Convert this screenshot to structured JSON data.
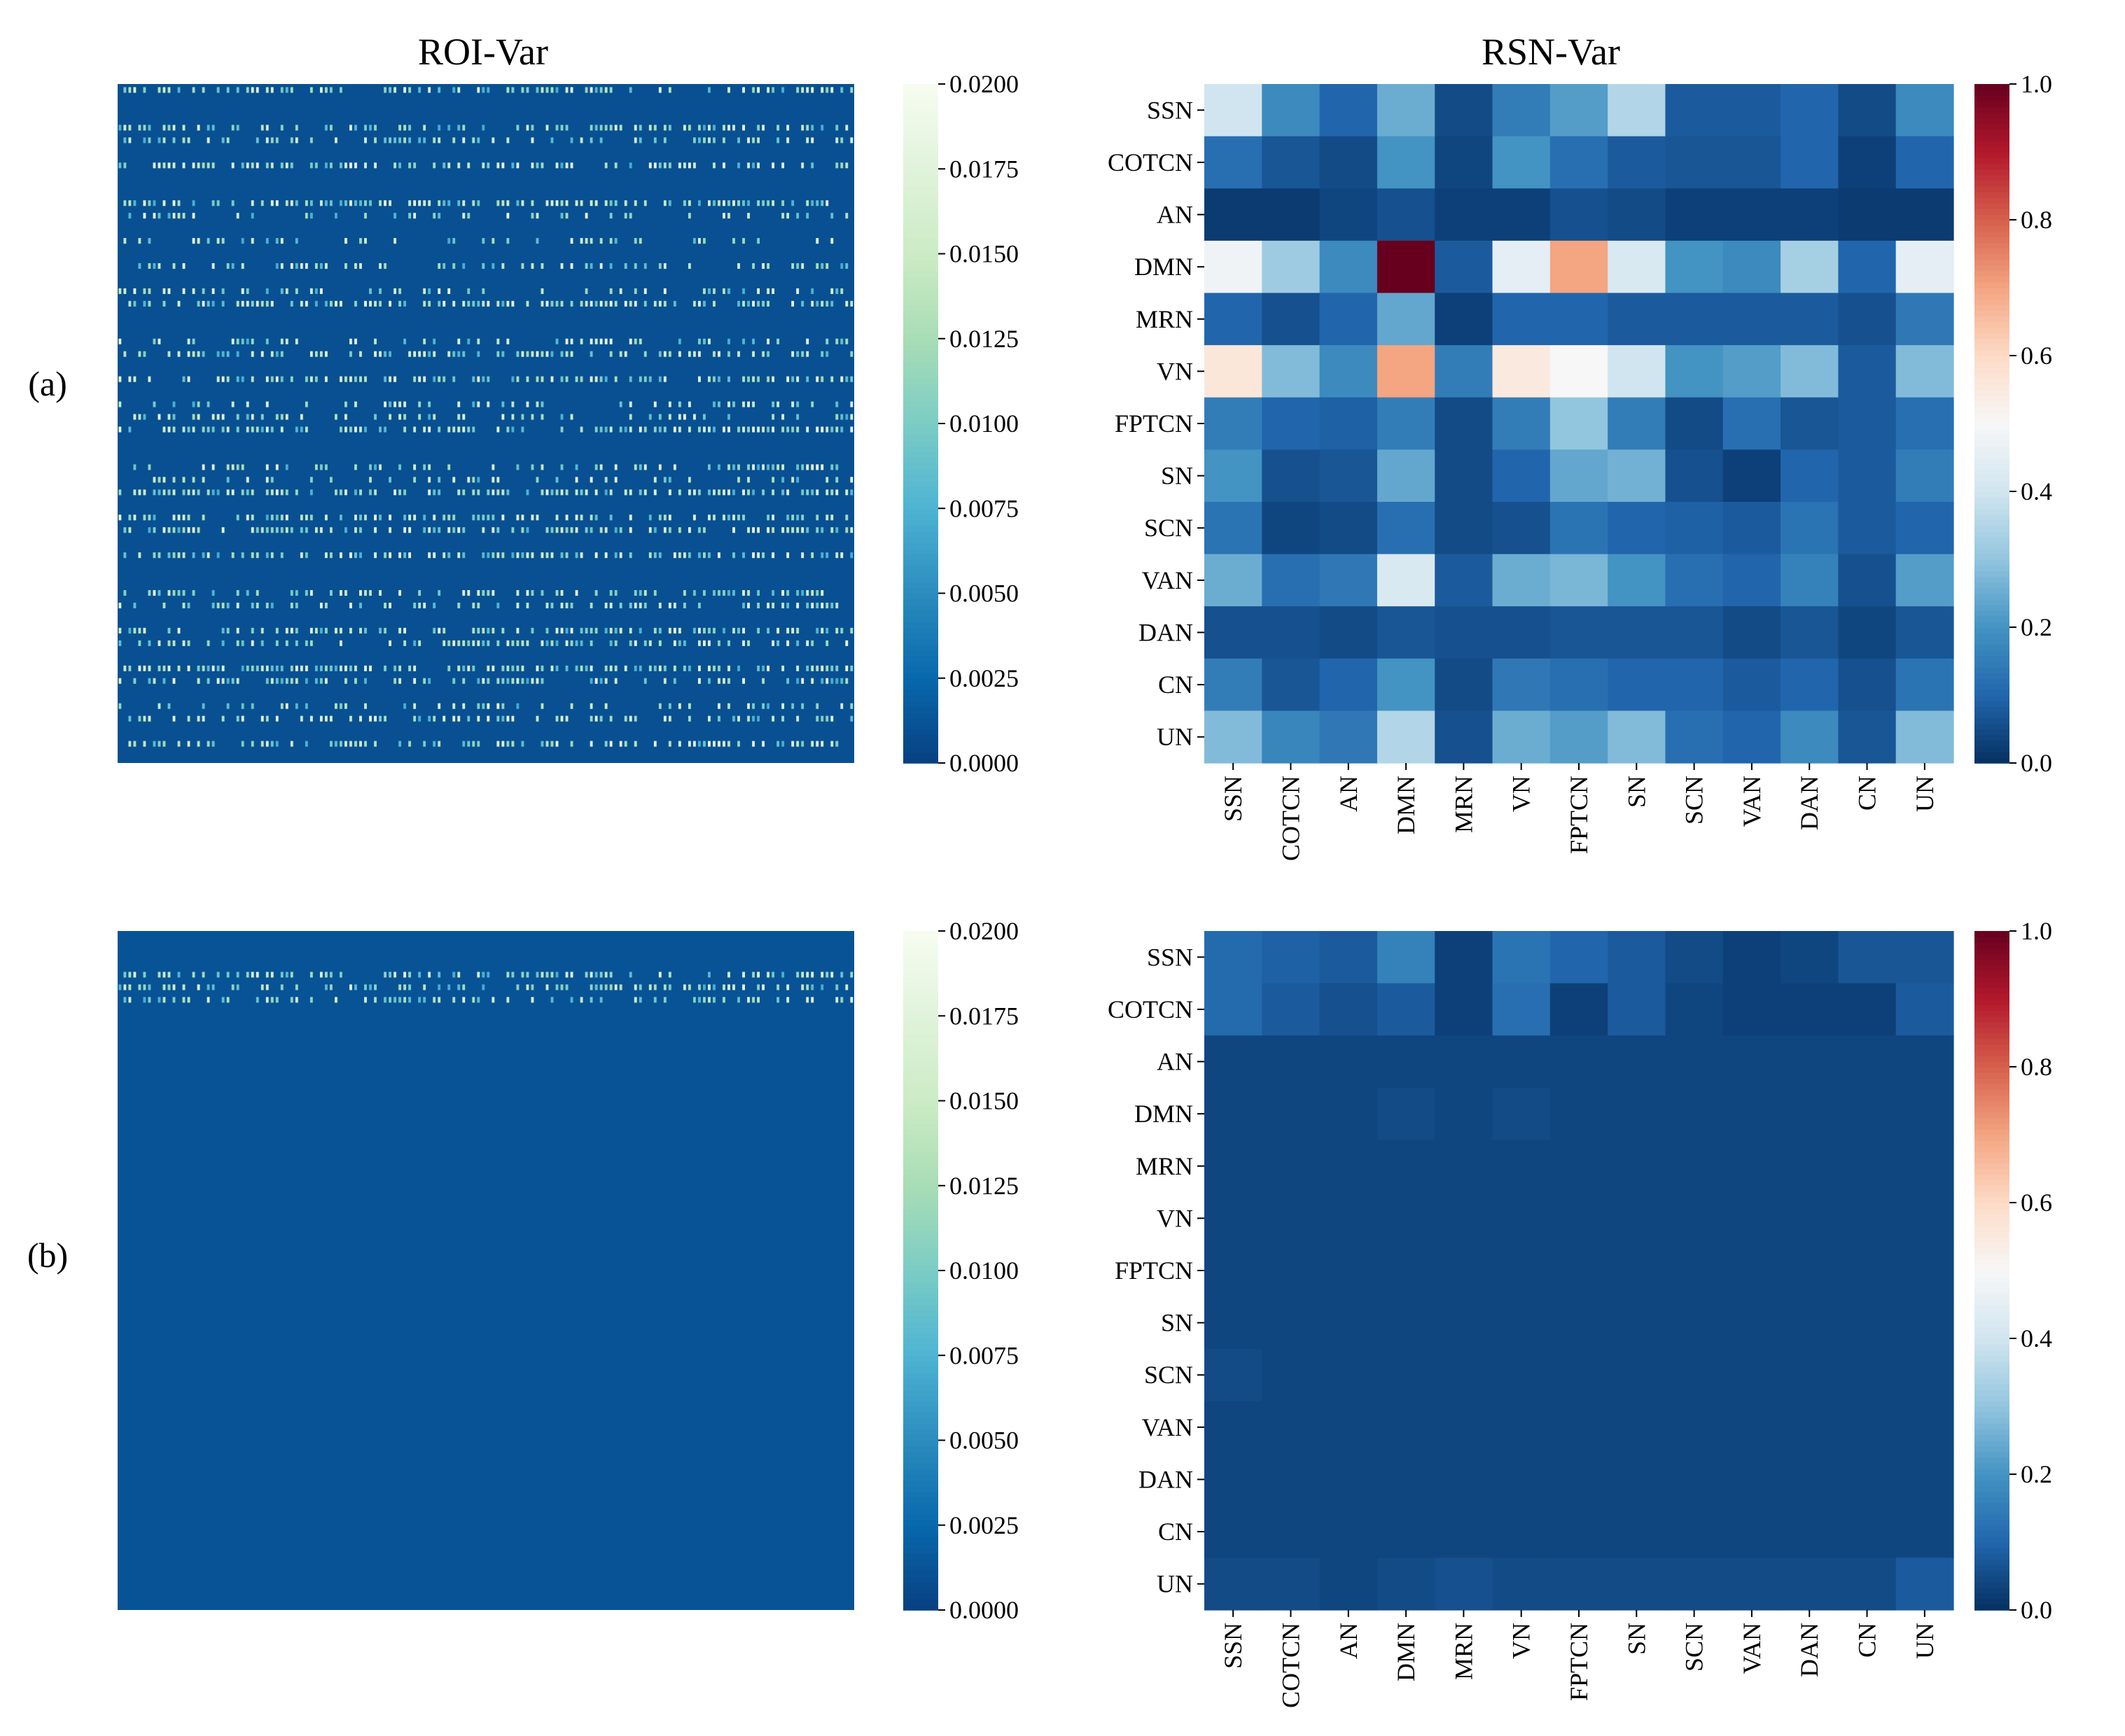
{
  "figure": {
    "titles": [
      "ROI-Var",
      "RSN-Var"
    ],
    "panel_labels": [
      "(a)",
      "(b)"
    ]
  },
  "colors": {
    "roi_cmap": [
      "#084081",
      "#0868ac",
      "#2b8cbe",
      "#4eb3d3",
      "#7bccc4",
      "#a8ddb5",
      "#ccebc5",
      "#e0f3db",
      "#f7fcf0"
    ],
    "rsn_cmap": [
      "#053061",
      "#2166ac",
      "#4393c3",
      "#92c5de",
      "#d1e5f0",
      "#f7f7f7",
      "#fddbc7",
      "#f4a582",
      "#d6604d",
      "#b2182b",
      "#67001f"
    ]
  },
  "chart_data": [
    {
      "type": "heatmap",
      "panel": "(a)",
      "title": "ROI-Var",
      "cmap": "GnBu_r",
      "vmin": 0.0,
      "vmax": 0.02,
      "grid": false,
      "xlabel": "",
      "ylabel": "",
      "colorbar_ticks": [
        "0.0000",
        "0.0025",
        "0.0050",
        "0.0075",
        "0.0100",
        "0.0125",
        "0.0150",
        "0.0175",
        "0.0200"
      ],
      "background_value": 0.001,
      "bright_rows": [
        0,
        3,
        4,
        6,
        9,
        10,
        12,
        14,
        16,
        17,
        20,
        21,
        23,
        25,
        26,
        27,
        30,
        31,
        32,
        34,
        35,
        37,
        40,
        41,
        43,
        44,
        46,
        47,
        49,
        50,
        52
      ],
      "total_rows": 54,
      "note": "Full ROI-level matrix not labeled; rows with bright cells approximated"
    },
    {
      "type": "heatmap",
      "panel": "(a)",
      "title": "RSN-Var",
      "cmap": "RdBu_r",
      "vmin": 0.0,
      "vmax": 1.0,
      "colorbar_ticks": [
        "0.0",
        "0.2",
        "0.4",
        "0.6",
        "0.8",
        "1.0"
      ],
      "x_labels": [
        "SSN",
        "COTCN",
        "AN",
        "DMN",
        "MRN",
        "VN",
        "FPTCN",
        "SN",
        "SCN",
        "VAN",
        "DAN",
        "CN",
        "UN"
      ],
      "y_labels": [
        "SSN",
        "COTCN",
        "AN",
        "DMN",
        "MRN",
        "VN",
        "FPTCN",
        "SN",
        "SCN",
        "VAN",
        "DAN",
        "CN",
        "UN"
      ],
      "values": [
        [
          0.4,
          0.18,
          0.1,
          0.25,
          0.05,
          0.15,
          0.22,
          0.35,
          0.08,
          0.08,
          0.1,
          0.05,
          0.18
        ],
        [
          0.12,
          0.07,
          0.05,
          0.2,
          0.04,
          0.2,
          0.12,
          0.08,
          0.07,
          0.07,
          0.1,
          0.03,
          0.1
        ],
        [
          0.02,
          0.02,
          0.04,
          0.06,
          0.03,
          0.03,
          0.06,
          0.05,
          0.03,
          0.03,
          0.03,
          0.02,
          0.02
        ],
        [
          0.48,
          0.32,
          0.18,
          1.0,
          0.08,
          0.45,
          0.7,
          0.42,
          0.2,
          0.18,
          0.33,
          0.1,
          0.45
        ],
        [
          0.1,
          0.06,
          0.1,
          0.24,
          0.03,
          0.1,
          0.1,
          0.08,
          0.08,
          0.08,
          0.08,
          0.06,
          0.14
        ],
        [
          0.56,
          0.28,
          0.18,
          0.7,
          0.15,
          0.55,
          0.5,
          0.4,
          0.2,
          0.22,
          0.28,
          0.08,
          0.28
        ],
        [
          0.15,
          0.1,
          0.09,
          0.15,
          0.05,
          0.15,
          0.3,
          0.15,
          0.05,
          0.12,
          0.07,
          0.08,
          0.12
        ],
        [
          0.2,
          0.06,
          0.07,
          0.24,
          0.05,
          0.1,
          0.24,
          0.26,
          0.06,
          0.03,
          0.1,
          0.08,
          0.15
        ],
        [
          0.13,
          0.04,
          0.05,
          0.12,
          0.05,
          0.06,
          0.13,
          0.1,
          0.09,
          0.08,
          0.13,
          0.08,
          0.1
        ],
        [
          0.25,
          0.12,
          0.14,
          0.42,
          0.08,
          0.25,
          0.27,
          0.2,
          0.12,
          0.1,
          0.16,
          0.06,
          0.22
        ],
        [
          0.06,
          0.06,
          0.05,
          0.07,
          0.06,
          0.06,
          0.07,
          0.07,
          0.07,
          0.05,
          0.07,
          0.04,
          0.07
        ],
        [
          0.15,
          0.07,
          0.1,
          0.2,
          0.05,
          0.14,
          0.12,
          0.1,
          0.1,
          0.08,
          0.1,
          0.06,
          0.13
        ],
        [
          0.28,
          0.17,
          0.14,
          0.35,
          0.06,
          0.25,
          0.22,
          0.28,
          0.12,
          0.1,
          0.18,
          0.07,
          0.28
        ]
      ]
    },
    {
      "type": "heatmap",
      "panel": "(b)",
      "title": "ROI-Var",
      "cmap": "GnBu_r",
      "vmin": 0.0,
      "vmax": 0.02,
      "grid": false,
      "colorbar_ticks": [
        "0.0000",
        "0.0025",
        "0.0050",
        "0.0075",
        "0.0100",
        "0.0125",
        "0.0150",
        "0.0175",
        "0.0200"
      ],
      "background_value": 0.0012,
      "bright_rows": [
        3,
        4,
        5
      ],
      "total_rows": 54,
      "note": "Mostly uniform; faint bright cells only near top rows"
    },
    {
      "type": "heatmap",
      "panel": "(b)",
      "title": "RSN-Var",
      "cmap": "RdBu_r",
      "vmin": 0.0,
      "vmax": 1.0,
      "colorbar_ticks": [
        "0.0",
        "0.2",
        "0.4",
        "0.6",
        "0.8",
        "1.0"
      ],
      "x_labels": [
        "SSN",
        "COTCN",
        "AN",
        "DMN",
        "MRN",
        "VN",
        "FPTCN",
        "SN",
        "SCN",
        "VAN",
        "DAN",
        "CN",
        "UN"
      ],
      "y_labels": [
        "SSN",
        "COTCN",
        "AN",
        "DMN",
        "MRN",
        "VN",
        "FPTCN",
        "SN",
        "SCN",
        "VAN",
        "DAN",
        "CN",
        "UN"
      ],
      "values": [
        [
          0.11,
          0.09,
          0.08,
          0.16,
          0.03,
          0.13,
          0.1,
          0.08,
          0.05,
          0.03,
          0.04,
          0.07,
          0.07
        ],
        [
          0.11,
          0.08,
          0.06,
          0.08,
          0.03,
          0.12,
          0.03,
          0.08,
          0.04,
          0.03,
          0.03,
          0.03,
          0.08
        ],
        [
          0.04,
          0.04,
          0.04,
          0.04,
          0.04,
          0.04,
          0.04,
          0.04,
          0.04,
          0.04,
          0.04,
          0.04,
          0.04
        ],
        [
          0.04,
          0.04,
          0.04,
          0.05,
          0.04,
          0.05,
          0.04,
          0.04,
          0.04,
          0.04,
          0.04,
          0.04,
          0.04
        ],
        [
          0.04,
          0.04,
          0.04,
          0.04,
          0.04,
          0.04,
          0.04,
          0.04,
          0.04,
          0.04,
          0.04,
          0.04,
          0.04
        ],
        [
          0.04,
          0.04,
          0.04,
          0.04,
          0.04,
          0.04,
          0.04,
          0.04,
          0.04,
          0.04,
          0.04,
          0.04,
          0.04
        ],
        [
          0.04,
          0.04,
          0.04,
          0.04,
          0.04,
          0.04,
          0.04,
          0.04,
          0.04,
          0.04,
          0.04,
          0.04,
          0.04
        ],
        [
          0.04,
          0.04,
          0.04,
          0.04,
          0.04,
          0.04,
          0.04,
          0.04,
          0.04,
          0.04,
          0.04,
          0.04,
          0.04
        ],
        [
          0.05,
          0.04,
          0.04,
          0.04,
          0.04,
          0.04,
          0.04,
          0.04,
          0.04,
          0.04,
          0.04,
          0.04,
          0.04
        ],
        [
          0.04,
          0.04,
          0.04,
          0.04,
          0.04,
          0.04,
          0.04,
          0.04,
          0.04,
          0.04,
          0.04,
          0.04,
          0.04
        ],
        [
          0.04,
          0.04,
          0.04,
          0.04,
          0.04,
          0.04,
          0.04,
          0.04,
          0.04,
          0.04,
          0.04,
          0.04,
          0.04
        ],
        [
          0.04,
          0.04,
          0.04,
          0.04,
          0.04,
          0.04,
          0.04,
          0.04,
          0.04,
          0.04,
          0.04,
          0.04,
          0.04
        ],
        [
          0.05,
          0.05,
          0.04,
          0.05,
          0.06,
          0.05,
          0.05,
          0.05,
          0.05,
          0.05,
          0.05,
          0.05,
          0.08
        ]
      ]
    }
  ]
}
